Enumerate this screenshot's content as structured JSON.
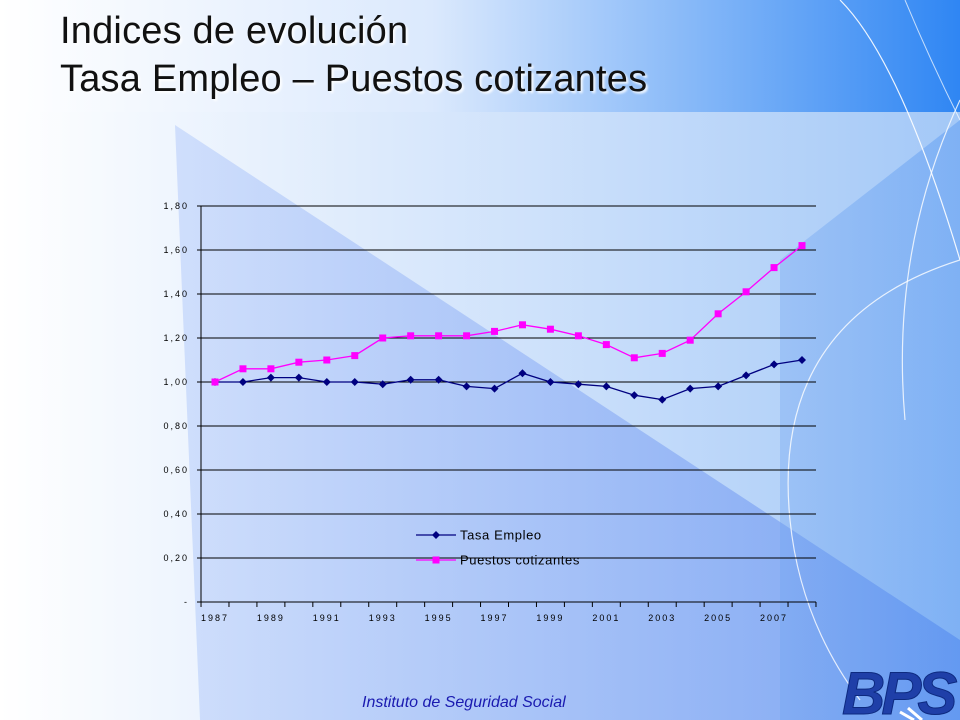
{
  "slide": {
    "title_line1": "Indices de evolución",
    "title_line2": "Tasa Empleo – Puestos cotizantes",
    "footer": "Instituto de Seguridad Social",
    "logo_text": "BPS"
  },
  "colors": {
    "tasa_empleo": "#000080",
    "puestos_cotizantes": "#ff00ff",
    "title_band": "#3b8cf0",
    "footer_text": "#1a1ab0"
  },
  "chart_data": {
    "type": "line",
    "title": "",
    "xlabel": "",
    "ylabel": "",
    "ylim": [
      0,
      1.8
    ],
    "grid": true,
    "legend_position": "bottom-center",
    "y_tick_labels": [
      "-",
      "0,20",
      "0,40",
      "0,60",
      "0,80",
      "1,00",
      "1,20",
      "1,40",
      "1,60",
      "1,80"
    ],
    "x_tick_labels": [
      "1987",
      "1989",
      "1991",
      "1993",
      "1995",
      "1997",
      "1999",
      "2001",
      "2003",
      "2005",
      "2007"
    ],
    "x": [
      1987,
      1988,
      1989,
      1990,
      1991,
      1992,
      1993,
      1994,
      1995,
      1996,
      1997,
      1998,
      1999,
      2000,
      2001,
      2002,
      2003,
      2004,
      2005,
      2006,
      2007,
      2008
    ],
    "series": [
      {
        "name": "Tasa Empleo",
        "marker": "diamond",
        "values": [
          1.0,
          1.0,
          1.02,
          1.02,
          1.0,
          1.0,
          0.99,
          1.01,
          1.01,
          0.98,
          0.97,
          1.04,
          1.0,
          0.99,
          0.98,
          0.94,
          0.92,
          0.97,
          0.98,
          1.03,
          1.08,
          1.1
        ]
      },
      {
        "name": "Puestos cotizantes",
        "marker": "square",
        "values": [
          1.0,
          1.06,
          1.06,
          1.09,
          1.1,
          1.12,
          1.2,
          1.21,
          1.21,
          1.21,
          1.23,
          1.26,
          1.24,
          1.21,
          1.17,
          1.11,
          1.13,
          1.19,
          1.31,
          1.41,
          1.52,
          1.62
        ]
      }
    ]
  }
}
